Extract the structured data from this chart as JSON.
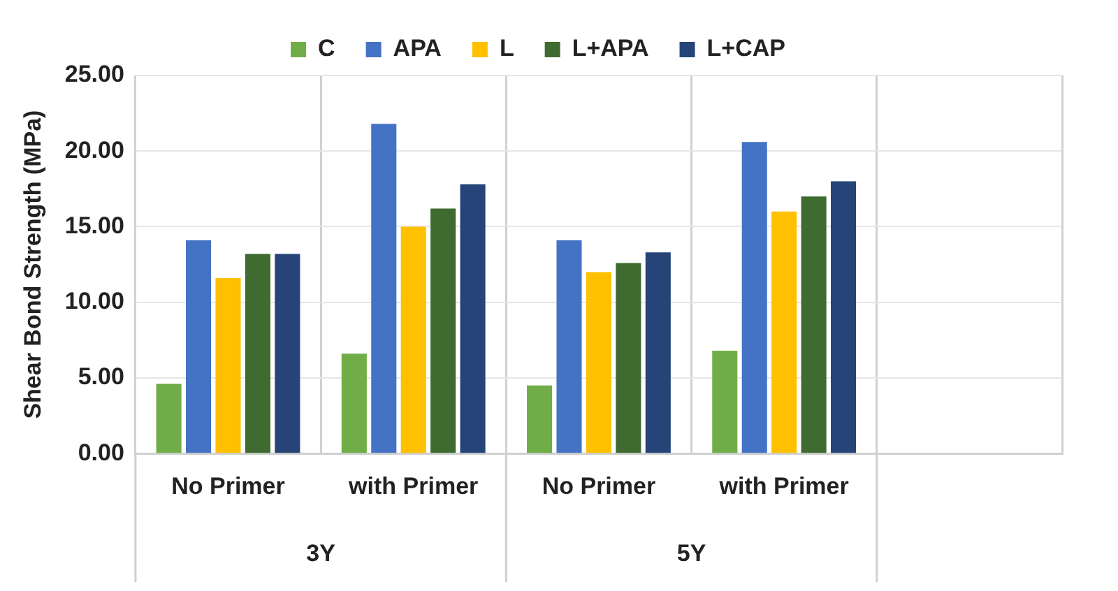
{
  "chart_data": {
    "type": "bar",
    "ylabel": "Shear Bond Strength (MPa)",
    "categories": [
      "No Primer",
      "with Primer",
      "No Primer",
      "with Primer",
      null
    ],
    "series": [
      {
        "name": "C",
        "color": "#70ad47",
        "values": [
          4.6,
          6.6,
          4.5,
          6.8,
          null
        ]
      },
      {
        "name": "APA",
        "color": "#4472c4",
        "values": [
          14.1,
          21.8,
          14.1,
          20.6,
          null
        ]
      },
      {
        "name": "L",
        "color": "#ffc000",
        "values": [
          11.6,
          15.0,
          12.0,
          16.0,
          null
        ]
      },
      {
        "name": "L+APA",
        "color": "#3f6b30",
        "values": [
          13.2,
          16.2,
          12.6,
          17.0,
          null
        ]
      },
      {
        "name": "L+CAP",
        "color": "#264478",
        "values": [
          13.2,
          17.8,
          13.3,
          18.0,
          null
        ]
      }
    ],
    "ylim": [
      0,
      25
    ],
    "yticks": [
      {
        "value": 0,
        "label": "0.00"
      },
      {
        "value": 5,
        "label": "5.00"
      },
      {
        "value": 10,
        "label": "10.00"
      },
      {
        "value": 15,
        "label": "15.00"
      },
      {
        "value": 20,
        "label": "20.00"
      },
      {
        "value": 25,
        "label": "25.00"
      }
    ],
    "annotations": [
      "3Y",
      "5Y"
    ],
    "grid": true,
    "legend": "top"
  }
}
